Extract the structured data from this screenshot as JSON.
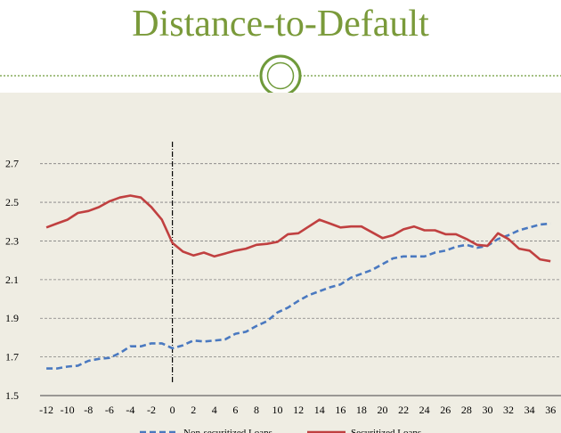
{
  "slide": {
    "title": "Distance-to-Default"
  },
  "colors": {
    "title": "#7a9a3a",
    "ornament": "#6f9a3a",
    "background": "#efede3",
    "nonsecuritized": "#4a79c0",
    "securitized": "#c04040",
    "grid": "#808080"
  },
  "icons": {
    "ornament": "double-circle-ornament-icon"
  },
  "chart_data": {
    "type": "line",
    "title": "",
    "xlabel": "",
    "ylabel": "",
    "x": [
      -12,
      -11,
      -10,
      -9,
      -8,
      -7,
      -6,
      -5,
      -4,
      -3,
      -2,
      -1,
      0,
      1,
      2,
      3,
      4,
      5,
      6,
      7,
      8,
      9,
      10,
      11,
      12,
      13,
      14,
      15,
      16,
      17,
      18,
      19,
      20,
      21,
      22,
      23,
      24,
      25,
      26,
      27,
      28,
      29,
      30,
      31,
      32,
      33,
      34,
      35,
      36
    ],
    "xticks": [
      -12,
      -10,
      -8,
      -6,
      -4,
      -2,
      0,
      2,
      4,
      6,
      8,
      10,
      12,
      14,
      16,
      18,
      20,
      22,
      24,
      26,
      28,
      30,
      32,
      34,
      36
    ],
    "xlim": [
      -12.6,
      37
    ],
    "ylim": [
      1.5,
      2.8
    ],
    "yticks": [
      "1.5",
      "1.7",
      "1.9",
      "2.1",
      "2.3",
      "2.5",
      "2.7"
    ],
    "grid": true,
    "vline_x": 0,
    "legend_position": "bottom",
    "series": [
      {
        "name": "Non-securitized Loans",
        "style": "dashed",
        "values": [
          1.64,
          1.64,
          1.65,
          1.655,
          1.68,
          1.69,
          1.695,
          1.72,
          1.755,
          1.755,
          1.77,
          1.77,
          1.745,
          1.76,
          1.785,
          1.78,
          1.785,
          1.79,
          1.82,
          1.83,
          1.86,
          1.885,
          1.93,
          1.955,
          1.99,
          2.02,
          2.04,
          2.06,
          2.075,
          2.11,
          2.13,
          2.15,
          2.18,
          2.21,
          2.22,
          2.22,
          2.22,
          2.24,
          2.25,
          2.27,
          2.28,
          2.265,
          2.275,
          2.31,
          2.33,
          2.355,
          2.37,
          2.385,
          2.39
        ]
      },
      {
        "name": "Securitized Loans",
        "style": "solid",
        "values": [
          2.37,
          2.39,
          2.41,
          2.445,
          2.455,
          2.475,
          2.505,
          2.525,
          2.535,
          2.525,
          2.475,
          2.41,
          2.29,
          2.245,
          2.225,
          2.24,
          2.22,
          2.235,
          2.25,
          2.26,
          2.28,
          2.285,
          2.295,
          2.335,
          2.34,
          2.375,
          2.41,
          2.39,
          2.37,
          2.375,
          2.375,
          2.345,
          2.315,
          2.33,
          2.36,
          2.375,
          2.355,
          2.355,
          2.335,
          2.335,
          2.31,
          2.28,
          2.275,
          2.34,
          2.31,
          2.26,
          2.25,
          2.205,
          2.195
        ]
      }
    ]
  }
}
